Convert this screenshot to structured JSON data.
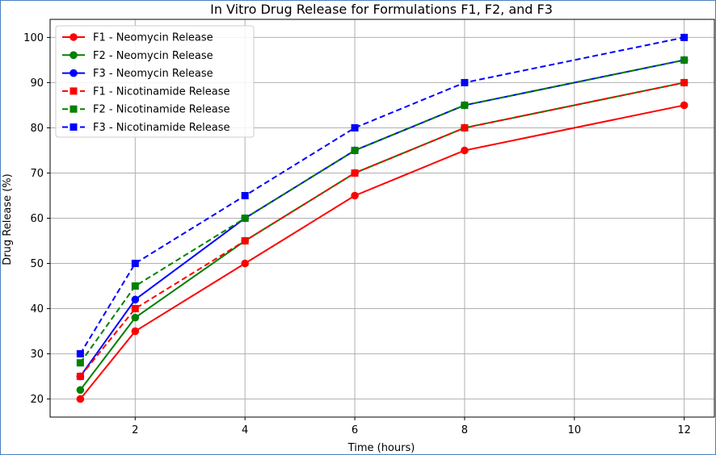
{
  "chart_data": {
    "type": "line",
    "title": "In Vitro Drug Release for Formulations F1, F2, and F3",
    "xlabel": "Time (hours)",
    "ylabel": "Drug Release (%)",
    "x": [
      1,
      2,
      4,
      6,
      8,
      12
    ],
    "xticks": [
      2,
      4,
      6,
      8,
      10,
      12
    ],
    "yticks": [
      20,
      30,
      40,
      50,
      60,
      70,
      80,
      90,
      100
    ],
    "xlim": [
      0.45,
      12.55
    ],
    "ylim": [
      16.0,
      104.0
    ],
    "grid": true,
    "legend_position": "top-left",
    "series": [
      {
        "name": "F1 - Neomycin Release",
        "color": "#ff0000",
        "style": "solid",
        "marker": "circle",
        "values": [
          20,
          35,
          50,
          65,
          75,
          85
        ]
      },
      {
        "name": "F2 - Neomycin Release",
        "color": "#008000",
        "style": "solid",
        "marker": "circle",
        "values": [
          22,
          38,
          55,
          70,
          80,
          90
        ]
      },
      {
        "name": "F3 - Neomycin Release",
        "color": "#0000ff",
        "style": "solid",
        "marker": "circle",
        "values": [
          25,
          42,
          60,
          75,
          85,
          95
        ]
      },
      {
        "name": "F1 - Nicotinamide Release",
        "color": "#ff0000",
        "style": "dashed",
        "marker": "square",
        "values": [
          25,
          40,
          55,
          70,
          80,
          90
        ]
      },
      {
        "name": "F2 - Nicotinamide Release",
        "color": "#008000",
        "style": "dashed",
        "marker": "square",
        "values": [
          28,
          45,
          60,
          75,
          85,
          95
        ]
      },
      {
        "name": "F3 - Nicotinamide Release",
        "color": "#0000ff",
        "style": "dashed",
        "marker": "square",
        "values": [
          30,
          50,
          65,
          80,
          90,
          100
        ]
      }
    ]
  }
}
